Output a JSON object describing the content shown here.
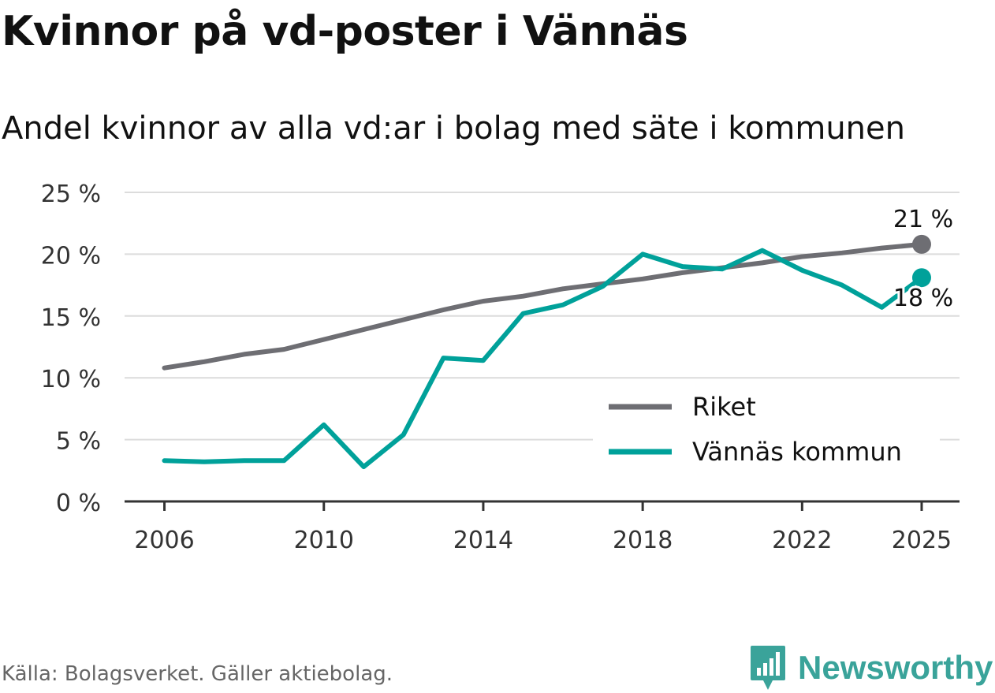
{
  "title": "Kvinnor på vd-poster i Vännäs",
  "subtitle": "Andel kvinnor av alla vd:ar i bolag med säte i kommunen",
  "source": "Källa: Bolagsverket. Gäller aktiebolag.",
  "brand": {
    "name": "Newsworthy",
    "icon": "newsworthy-logo-icon",
    "color": "#3aa39a"
  },
  "chart_data": {
    "type": "line",
    "title": "Kvinnor på vd-poster i Vännäs",
    "subtitle": "Andel kvinnor av alla vd:ar i bolag med säte i kommunen",
    "xlabel": "",
    "ylabel": "",
    "x": [
      2006,
      2007,
      2008,
      2009,
      2010,
      2011,
      2012,
      2013,
      2014,
      2015,
      2016,
      2017,
      2018,
      2019,
      2020,
      2021,
      2022,
      2023,
      2024,
      2025
    ],
    "xlim": [
      2005,
      2025.95
    ],
    "ylim": [
      0,
      25
    ],
    "x_ticks": [
      2006,
      2010,
      2014,
      2018,
      2022,
      2025
    ],
    "x_tick_labels": [
      "2006",
      "2010",
      "2014",
      "2018",
      "2022",
      "2025"
    ],
    "y_ticks": [
      0,
      5,
      10,
      15,
      20,
      25
    ],
    "y_tick_labels": [
      "0 %",
      "5 %",
      "10 %",
      "15 %",
      "20 %",
      "25 %"
    ],
    "grid": true,
    "legend_position": "bottom-right",
    "series": [
      {
        "name": "Riket",
        "color": "#6e6e73",
        "values": [
          10.8,
          11.3,
          11.9,
          12.3,
          13.1,
          13.9,
          14.7,
          15.5,
          16.2,
          16.6,
          17.2,
          17.6,
          18.0,
          18.5,
          18.9,
          19.3,
          19.8,
          20.1,
          20.5,
          20.8
        ],
        "end_label": "21 %",
        "end_label_placement": "above"
      },
      {
        "name": "Vännäs kommun",
        "color": "#00a19a",
        "values": [
          3.3,
          3.2,
          3.3,
          3.3,
          6.2,
          2.8,
          5.4,
          11.6,
          11.4,
          15.2,
          15.9,
          17.4,
          20.0,
          19.0,
          18.8,
          20.3,
          18.7,
          17.5,
          15.7,
          18.1
        ],
        "end_label": "18 %",
        "end_label_placement": "below"
      }
    ]
  }
}
